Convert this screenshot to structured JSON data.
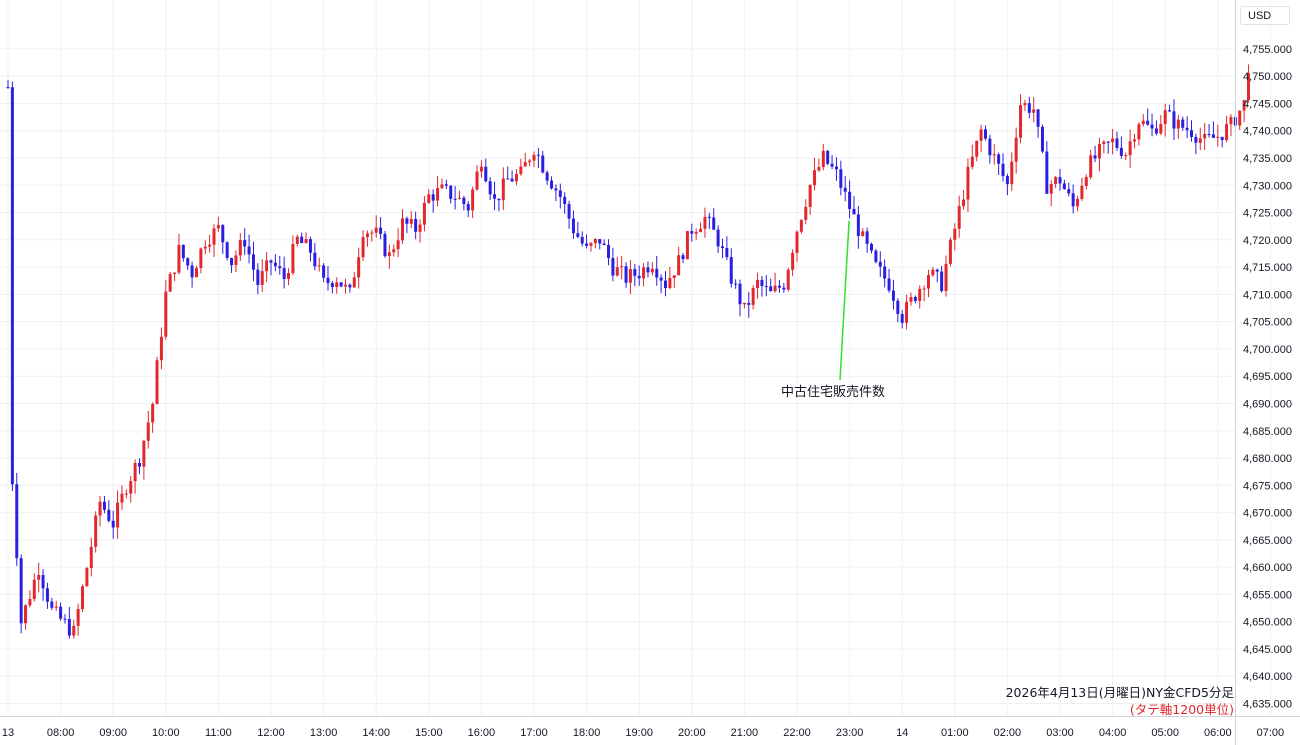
{
  "currency": "USD",
  "annotation": {
    "text": "中古住宅販売件数",
    "time": "23:00",
    "price": 4723.5,
    "color": "#33e02a"
  },
  "caption": {
    "line1": "2026年4月13日(月曜日)NY金CFD5分足",
    "line2": "(タテ軸1200単位)"
  },
  "colors": {
    "up": "#e0282e",
    "down": "#2a1ee0",
    "grid": "#eef0f4",
    "axis_text": "#131722"
  },
  "chart_data": {
    "type": "candlestick",
    "title": "",
    "xlabel": "",
    "ylabel": "",
    "interval_minutes": 5,
    "ylim": [
      4632.5,
      4760
    ],
    "y_ticks": [
      4635,
      4640,
      4645,
      4650,
      4655,
      4660,
      4665,
      4670,
      4675,
      4680,
      4685,
      4690,
      4695,
      4700,
      4705,
      4710,
      4715,
      4720,
      4725,
      4730,
      4735,
      4740,
      4745,
      4750,
      4755
    ],
    "x_tick_labels": [
      "13",
      "08:00",
      "09:00",
      "10:00",
      "11:00",
      "12:00",
      "13:00",
      "14:00",
      "15:00",
      "16:00",
      "17:00",
      "18:00",
      "19:00",
      "20:00",
      "21:00",
      "22:00",
      "23:00",
      "14",
      "01:00",
      "02:00",
      "03:00",
      "04:00",
      "05:00",
      "06:00",
      "07:00"
    ],
    "close_path": [
      {
        "t": "07:00",
        "close": 4748
      },
      {
        "t": "07:05",
        "close": 4676
      },
      {
        "t": "07:15",
        "close": 4650
      },
      {
        "t": "07:35",
        "close": 4660
      },
      {
        "t": "07:50",
        "close": 4652
      },
      {
        "t": "08:15",
        "close": 4648
      },
      {
        "t": "08:30",
        "close": 4660
      },
      {
        "t": "08:45",
        "close": 4672
      },
      {
        "t": "09:00",
        "close": 4668
      },
      {
        "t": "09:15",
        "close": 4675
      },
      {
        "t": "09:30",
        "close": 4680
      },
      {
        "t": "09:45",
        "close": 4690
      },
      {
        "t": "10:00",
        "close": 4710
      },
      {
        "t": "10:15",
        "close": 4718
      },
      {
        "t": "10:30",
        "close": 4714
      },
      {
        "t": "10:45",
        "close": 4720
      },
      {
        "t": "11:00",
        "close": 4722
      },
      {
        "t": "11:15",
        "close": 4716
      },
      {
        "t": "11:30",
        "close": 4720
      },
      {
        "t": "11:45",
        "close": 4712
      },
      {
        "t": "12:00",
        "close": 4716
      },
      {
        "t": "12:15",
        "close": 4713
      },
      {
        "t": "12:30",
        "close": 4720
      },
      {
        "t": "12:45",
        "close": 4718
      },
      {
        "t": "13:00",
        "close": 4712
      },
      {
        "t": "13:15",
        "close": 4713
      },
      {
        "t": "13:30",
        "close": 4710
      },
      {
        "t": "13:45",
        "close": 4722
      },
      {
        "t": "14:00",
        "close": 4721
      },
      {
        "t": "14:15",
        "close": 4717
      },
      {
        "t": "14:30",
        "close": 4723
      },
      {
        "t": "14:45",
        "close": 4722
      },
      {
        "t": "15:00",
        "close": 4728
      },
      {
        "t": "15:15",
        "close": 4729
      },
      {
        "t": "15:30",
        "close": 4728
      },
      {
        "t": "15:45",
        "close": 4726
      },
      {
        "t": "16:00",
        "close": 4735
      },
      {
        "t": "16:15",
        "close": 4727
      },
      {
        "t": "16:30",
        "close": 4731
      },
      {
        "t": "16:45",
        "close": 4732
      },
      {
        "t": "17:00",
        "close": 4737
      },
      {
        "t": "17:15",
        "close": 4732
      },
      {
        "t": "17:30",
        "close": 4728
      },
      {
        "t": "17:45",
        "close": 4722
      },
      {
        "t": "18:00",
        "close": 4718
      },
      {
        "t": "18:15",
        "close": 4720
      },
      {
        "t": "18:30",
        "close": 4715
      },
      {
        "t": "18:45",
        "close": 4713
      },
      {
        "t": "19:00",
        "close": 4714
      },
      {
        "t": "19:15",
        "close": 4716
      },
      {
        "t": "19:30",
        "close": 4712
      },
      {
        "t": "19:45",
        "close": 4716
      },
      {
        "t": "20:00",
        "close": 4722
      },
      {
        "t": "20:15",
        "close": 4724
      },
      {
        "t": "20:30",
        "close": 4720
      },
      {
        "t": "20:45",
        "close": 4713
      },
      {
        "t": "21:00",
        "close": 4707
      },
      {
        "t": "21:15",
        "close": 4712
      },
      {
        "t": "21:30",
        "close": 4710
      },
      {
        "t": "21:45",
        "close": 4712
      },
      {
        "t": "22:00",
        "close": 4722
      },
      {
        "t": "22:15",
        "close": 4730
      },
      {
        "t": "22:30",
        "close": 4735
      },
      {
        "t": "22:45",
        "close": 4732
      },
      {
        "t": "23:00",
        "close": 4726
      },
      {
        "t": "23:15",
        "close": 4720
      },
      {
        "t": "23:30",
        "close": 4715
      },
      {
        "t": "23:45",
        "close": 4712
      },
      {
        "t": "00:00",
        "close": 4706
      },
      {
        "t": "00:15",
        "close": 4710
      },
      {
        "t": "00:30",
        "close": 4714
      },
      {
        "t": "00:45",
        "close": 4712
      },
      {
        "t": "01:00",
        "close": 4722
      },
      {
        "t": "01:15",
        "close": 4732
      },
      {
        "t": "01:30",
        "close": 4740
      },
      {
        "t": "01:45",
        "close": 4735
      },
      {
        "t": "02:00",
        "close": 4730
      },
      {
        "t": "02:15",
        "close": 4745
      },
      {
        "t": "02:30",
        "close": 4744
      },
      {
        "t": "02:45",
        "close": 4730
      },
      {
        "t": "03:00",
        "close": 4731
      },
      {
        "t": "03:15",
        "close": 4726
      },
      {
        "t": "03:30",
        "close": 4733
      },
      {
        "t": "03:45",
        "close": 4736
      },
      {
        "t": "04:00",
        "close": 4738
      },
      {
        "t": "04:15",
        "close": 4736
      },
      {
        "t": "04:30",
        "close": 4742
      },
      {
        "t": "04:45",
        "close": 4740
      },
      {
        "t": "05:00",
        "close": 4743
      },
      {
        "t": "05:15",
        "close": 4741
      },
      {
        "t": "05:30",
        "close": 4740
      },
      {
        "t": "05:45",
        "close": 4738
      },
      {
        "t": "06:00",
        "close": 4739
      },
      {
        "t": "06:15",
        "close": 4741
      },
      {
        "t": "06:30",
        "close": 4745
      },
      {
        "t": "06:35",
        "close": 4752
      }
    ]
  }
}
